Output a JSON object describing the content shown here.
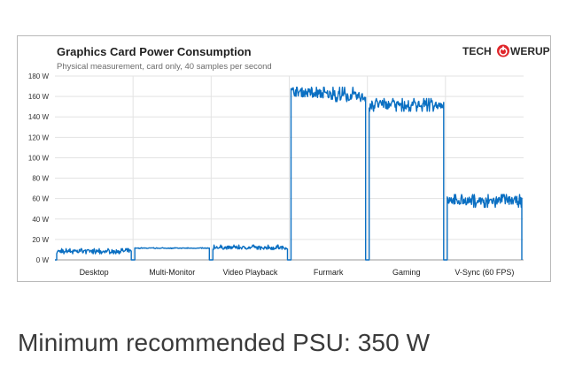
{
  "footer_text": "Minimum recommended PSU: 350 W",
  "logo": {
    "left": "TECH",
    "right": "WERUP",
    "accent_color": "#e0262b"
  },
  "chart_data": {
    "type": "line",
    "title": "Graphics  Card Power Consumption",
    "subtitle": "Physical measurement, card only, 40 samples per second",
    "unit": "W",
    "ylim": [
      0,
      180
    ],
    "yticks": [
      0,
      20,
      40,
      60,
      80,
      100,
      120,
      140,
      160,
      180
    ],
    "ytick_labels": [
      "0 W",
      "20 W",
      "40 W",
      "60 W",
      "80 W",
      "100 W",
      "120 W",
      "140 W",
      "160 W",
      "180 W"
    ],
    "grid": true,
    "line_color": "#0a6fc2",
    "categories": [
      "Desktop",
      "Multi-Monitor",
      "Video Playback",
      "Furmark",
      "Gaming",
      "V-Sync (60 FPS)"
    ],
    "series": [
      {
        "values": [
          {
            "category": "Desktop",
            "mean": 8.5,
            "min": 6,
            "max": 11,
            "trend": 0
          },
          {
            "category": "Multi-Monitor",
            "mean": 11.5,
            "min": 11,
            "max": 12,
            "trend": 0
          },
          {
            "category": "Video Playback",
            "mean": 12,
            "min": 10,
            "max": 15,
            "trend": 0
          },
          {
            "category": "Furmark",
            "mean": 162,
            "min": 155,
            "max": 169,
            "trend": -6
          },
          {
            "category": "Gaming",
            "mean": 152,
            "min": 145,
            "max": 158,
            "trend": 0
          },
          {
            "category": "V-Sync (60 FPS)",
            "mean": 58,
            "min": 51,
            "max": 64,
            "trend": 0
          }
        ]
      }
    ]
  }
}
